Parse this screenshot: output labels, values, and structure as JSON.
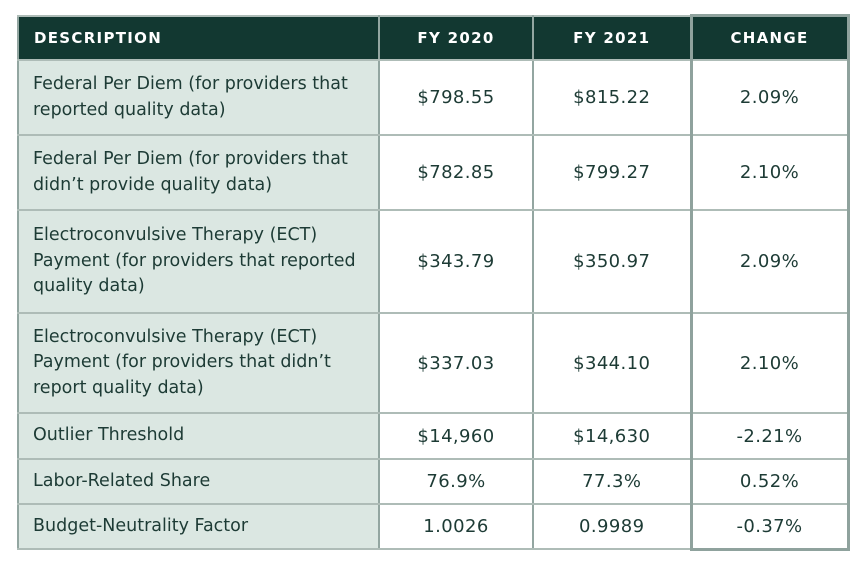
{
  "table": {
    "columns": [
      {
        "label": "DESCRIPTION"
      },
      {
        "label": "FY 2020"
      },
      {
        "label": "FY 2021"
      },
      {
        "label": "CHANGE"
      }
    ],
    "rows": [
      {
        "description": "Federal Per Diem (for providers that reported quality data)",
        "fy2020": "$798.55",
        "fy2021": "$815.22",
        "change": "2.09%"
      },
      {
        "description": "Federal Per Diem (for providers that didn’t provide quality data)",
        "fy2020": "$782.85",
        "fy2021": "$799.27",
        "change": "2.10%"
      },
      {
        "description": "Electroconvulsive Therapy (ECT) Payment (for providers that reported quality data)",
        "fy2020": "$343.79",
        "fy2021": "$350.97",
        "change": "2.09%"
      },
      {
        "description": "Electroconvulsive Therapy (ECT) Payment (for providers that didn’t report quality data)",
        "fy2020": "$337.03",
        "fy2021": "$344.10",
        "change": "2.10%"
      },
      {
        "description": "Outlier Threshold",
        "fy2020": "$14,960",
        "fy2021": "$14,630",
        "change": "-2.21%"
      },
      {
        "description": "Labor-Related Share",
        "fy2020": "76.9%",
        "fy2021": "77.3%",
        "change": "0.52%"
      },
      {
        "description": "Budget-Neutrality Factor",
        "fy2020": "1.0026",
        "fy2021": "0.9989",
        "change": "-0.37%"
      }
    ],
    "colors": {
      "header_bg": "#123831",
      "header_text": "#ffffff",
      "description_cell_bg": "#dbe7e2",
      "value_cell_bg": "#ffffff",
      "body_text": "#1d3b35",
      "grid_line_horizontal": "#aebcb7",
      "grid_line_vertical": "#93a6a1",
      "change_column_frame": "#8fa29d"
    }
  }
}
